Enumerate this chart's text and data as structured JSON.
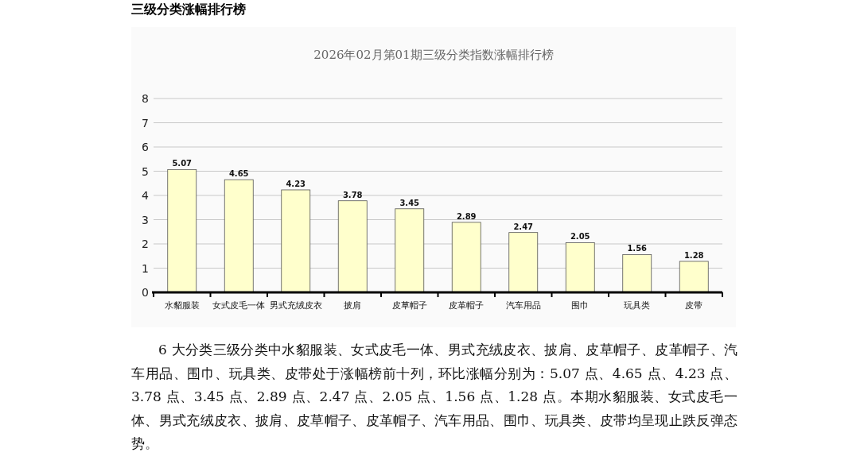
{
  "chart_data": {
    "type": "bar",
    "title": "2026年02月第01期三级分类指数涨幅排行榜",
    "categories": [
      "水貂服装",
      "女式皮毛一体",
      "男式充绒皮衣",
      "披肩",
      "皮草帽子",
      "皮革帽子",
      "汽车用品",
      "围巾",
      "玩具类",
      "皮带"
    ],
    "values": [
      5.07,
      4.65,
      4.23,
      3.78,
      3.45,
      2.89,
      2.47,
      2.05,
      1.56,
      1.28
    ],
    "color": "#ffffcc",
    "ylim": [
      0,
      8
    ],
    "yticks": [
      0,
      1,
      2,
      3,
      4,
      5,
      6,
      7,
      8
    ],
    "grid": "y",
    "data_labels": true,
    "annotations": [
      "三级分类涨幅排行榜",
      "6 大分类三级分类中水貂服装、女式皮毛一体、男式充绒皮衣、披肩、皮草帽子、皮革帽子、汽车用品、围巾、玩具类、皮带处于涨幅榜前十列，环比涨幅分别为：5.07 点、4.65 点、4.23 点、3.78 点、3.45 点、2.89 点、2.47 点、2.05 点、1.56 点、1.28 点。本期水貂服装、女式皮毛一体、男式充绒皮衣、披肩、皮草帽子、皮革帽子、汽车用品、围巾、玩具类、皮带均呈现止跌反弹态势。"
    ]
  }
}
